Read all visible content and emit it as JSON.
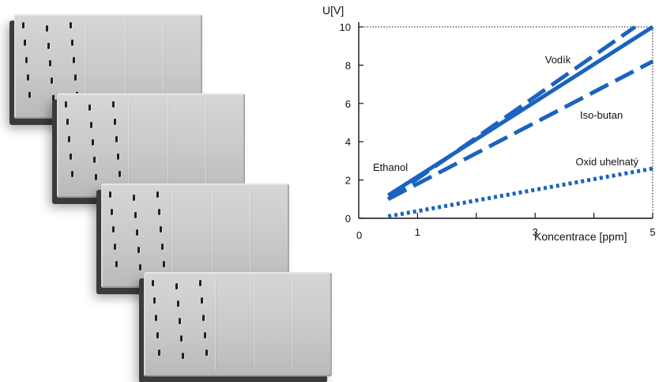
{
  "chart_data": {
    "type": "line",
    "ylabel": "U[V]",
    "xlabel": "Koncentrace [ppm]",
    "xlim": [
      0,
      5
    ],
    "ylim": [
      0,
      10
    ],
    "x_ticks": [
      1,
      3,
      5
    ],
    "y_ticks": [
      0,
      2,
      4,
      6,
      8,
      10
    ],
    "origin_label": "0",
    "grid": false,
    "series": [
      {
        "name": "Vodík",
        "x": [
          0.5,
          4.7
        ],
        "y": [
          1.0,
          10.0
        ],
        "style": "dashed"
      },
      {
        "name": "Ethanol",
        "x": [
          0.5,
          5.0
        ],
        "y": [
          1.2,
          10.0
        ],
        "style": "solid"
      },
      {
        "name": "Iso-butan",
        "x": [
          0.5,
          5.0
        ],
        "y": [
          1.0,
          8.2
        ],
        "style": "dashed"
      },
      {
        "name": "Oxid uhelnatý",
        "x": [
          0.5,
          5.0
        ],
        "y": [
          0.1,
          2.6
        ],
        "style": "dotted"
      }
    ],
    "colors": {
      "series": "#1a63c0",
      "axes": "#111111"
    }
  }
}
